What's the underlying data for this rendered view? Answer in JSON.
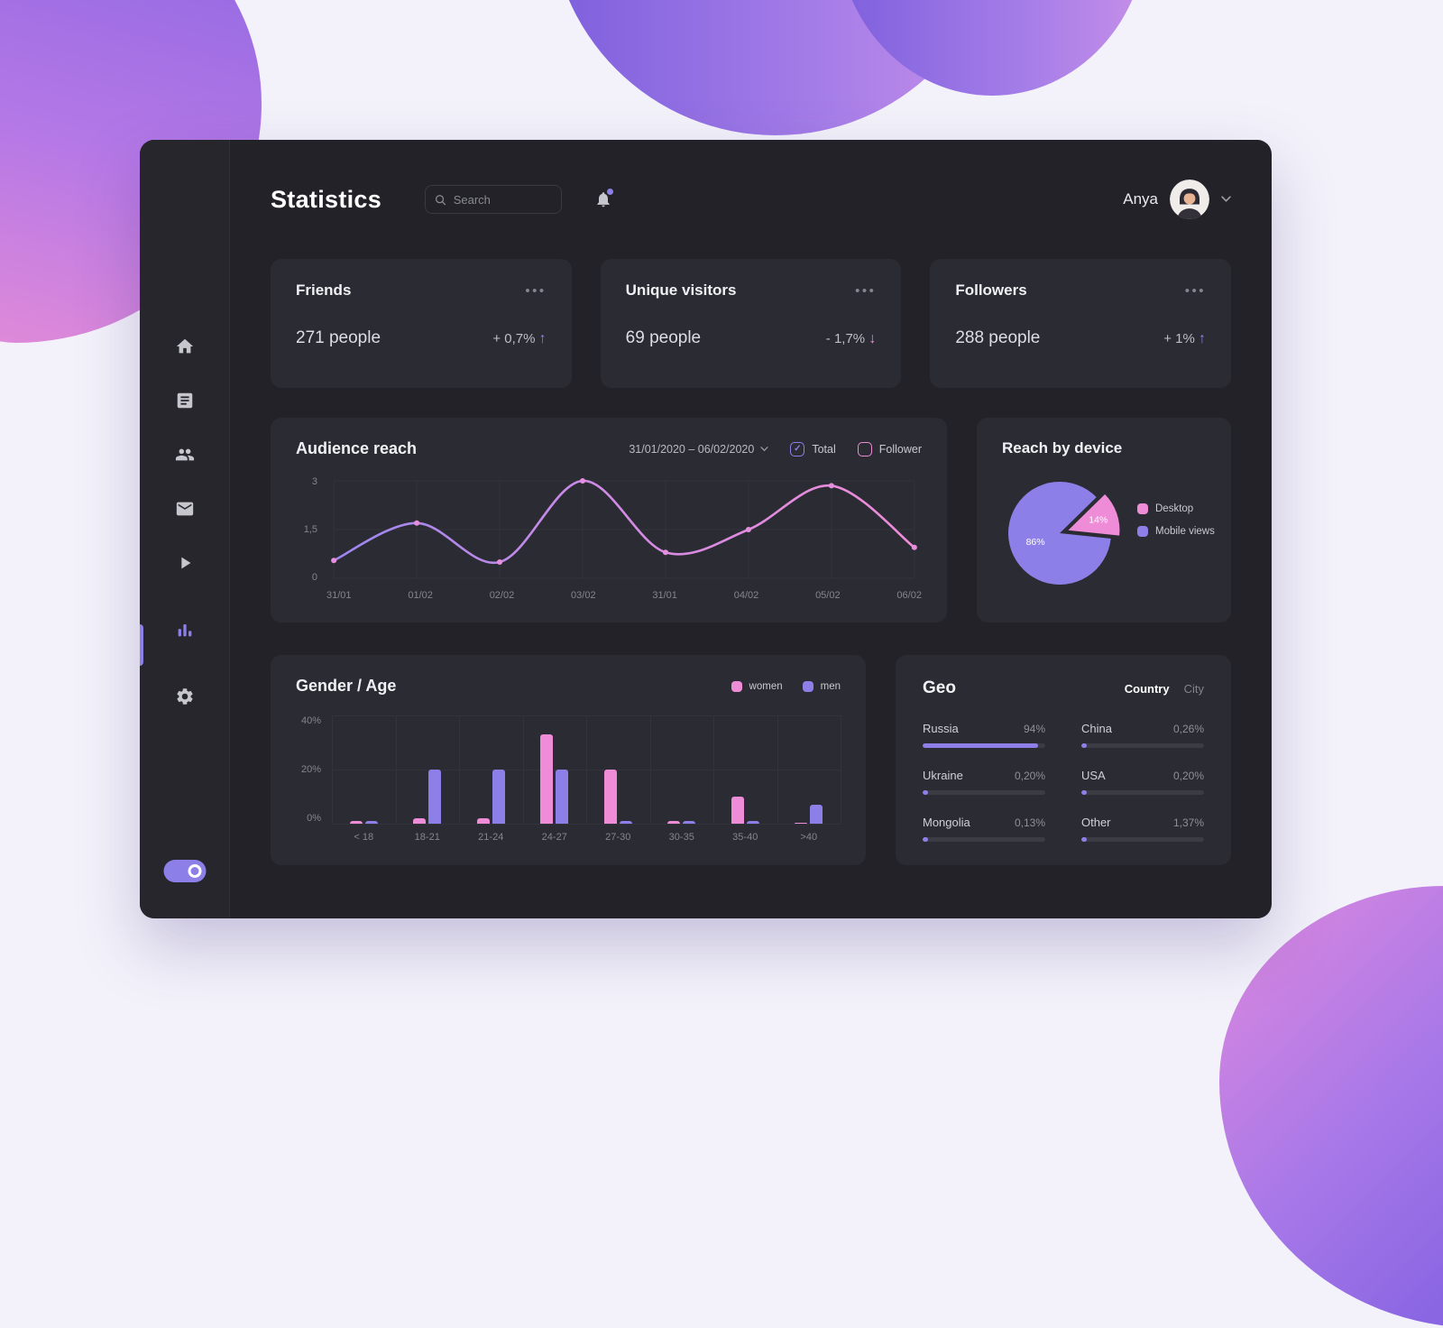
{
  "page": {
    "title": "Statistics"
  },
  "header": {
    "search_placeholder": "Search",
    "user_name": "Anya"
  },
  "colors": {
    "accent_purple": "#8c80e8",
    "accent_pink": "#ee8cd8"
  },
  "sidebar": {
    "icons": [
      "home",
      "news-feed",
      "friends",
      "messages",
      "media",
      "statistics",
      "settings"
    ],
    "active": "statistics",
    "toggle": "on"
  },
  "stat_cards": [
    {
      "title": "Friends",
      "value": "271 people",
      "delta": "+ 0,7%",
      "trend": "up"
    },
    {
      "title": "Unique visitors",
      "value": "69 people",
      "delta": "- 1,7%",
      "trend": "down"
    },
    {
      "title": "Followers",
      "value": "288 people",
      "delta": "+ 1%",
      "trend": "up"
    }
  ],
  "audience": {
    "date_range": "31/01/2020 – 06/02/2020",
    "legend": [
      {
        "label": "Total",
        "color": "#8c80e8",
        "checked": true
      },
      {
        "label": "Follower",
        "color": "#ee8cd8",
        "checked": false
      }
    ]
  },
  "geo": {
    "title": "Geo",
    "tabs": [
      {
        "label": "Country",
        "active": true
      },
      {
        "label": "City",
        "active": false
      }
    ],
    "bar_color": "#8c80e8",
    "columns": [
      [
        {
          "name": "Russia",
          "label": "94%",
          "percent": 94
        },
        {
          "name": "Ukraine",
          "label": "0,20%",
          "percent": 0.2
        },
        {
          "name": "Mongolia",
          "label": "0,13%",
          "percent": 0.13
        }
      ],
      [
        {
          "name": "China",
          "label": "0,26%",
          "percent": 0.26
        },
        {
          "name": "USA",
          "label": "0,20%",
          "percent": 0.2
        },
        {
          "name": "Other",
          "label": "1,37%",
          "percent": 1.37
        }
      ]
    ]
  },
  "chart_data": [
    {
      "type": "line",
      "title": "Audience reach",
      "series_name": "Total",
      "x": [
        "31/01",
        "01/02",
        "02/02",
        "03/02",
        "31/01",
        "04/02",
        "05/02",
        "06/02"
      ],
      "values": [
        0.55,
        1.7,
        0.5,
        3,
        0.8,
        1.5,
        2.85,
        0.95
      ],
      "ylim": [
        0,
        3
      ],
      "yticks": [
        {
          "label": "0",
          "v": 0
        },
        {
          "label": "1,5",
          "v": 1.5
        },
        {
          "label": "3",
          "v": 3
        }
      ],
      "grid": true,
      "line_gradient": [
        "#9c87ee",
        "#d38be4",
        "#ee8cd8"
      ]
    },
    {
      "type": "pie",
      "title": "Reach by device",
      "labels": [
        "Desktop",
        "Mobile views"
      ],
      "values": [
        14,
        86
      ],
      "labels_pct": [
        "14%",
        "86%"
      ],
      "colors": [
        "#ee8cd8",
        "#8c80e8"
      ],
      "explode": [
        true,
        false
      ],
      "start_angle": -6,
      "legend_position": "right"
    },
    {
      "type": "bar",
      "title": "Gender / Age",
      "categories": [
        "< 18",
        "18-21",
        "21-24",
        "24-27",
        "27-30",
        "30-35",
        "35-40",
        ">40"
      ],
      "series": [
        {
          "name": "women",
          "color": "#ee8cd8",
          "values": [
            1,
            2,
            2,
            33,
            20,
            1,
            10,
            0.5
          ]
        },
        {
          "name": "men",
          "color": "#8c80e8",
          "values": [
            1,
            20,
            20,
            20,
            1,
            1,
            1,
            7
          ]
        }
      ],
      "ylim": [
        0,
        40
      ],
      "yticks": [
        {
          "label": "0%",
          "v": 0
        },
        {
          "label": "20%",
          "v": 20
        },
        {
          "label": "40%",
          "v": 40
        }
      ],
      "grid": true,
      "legend_position": "top-right"
    }
  ]
}
